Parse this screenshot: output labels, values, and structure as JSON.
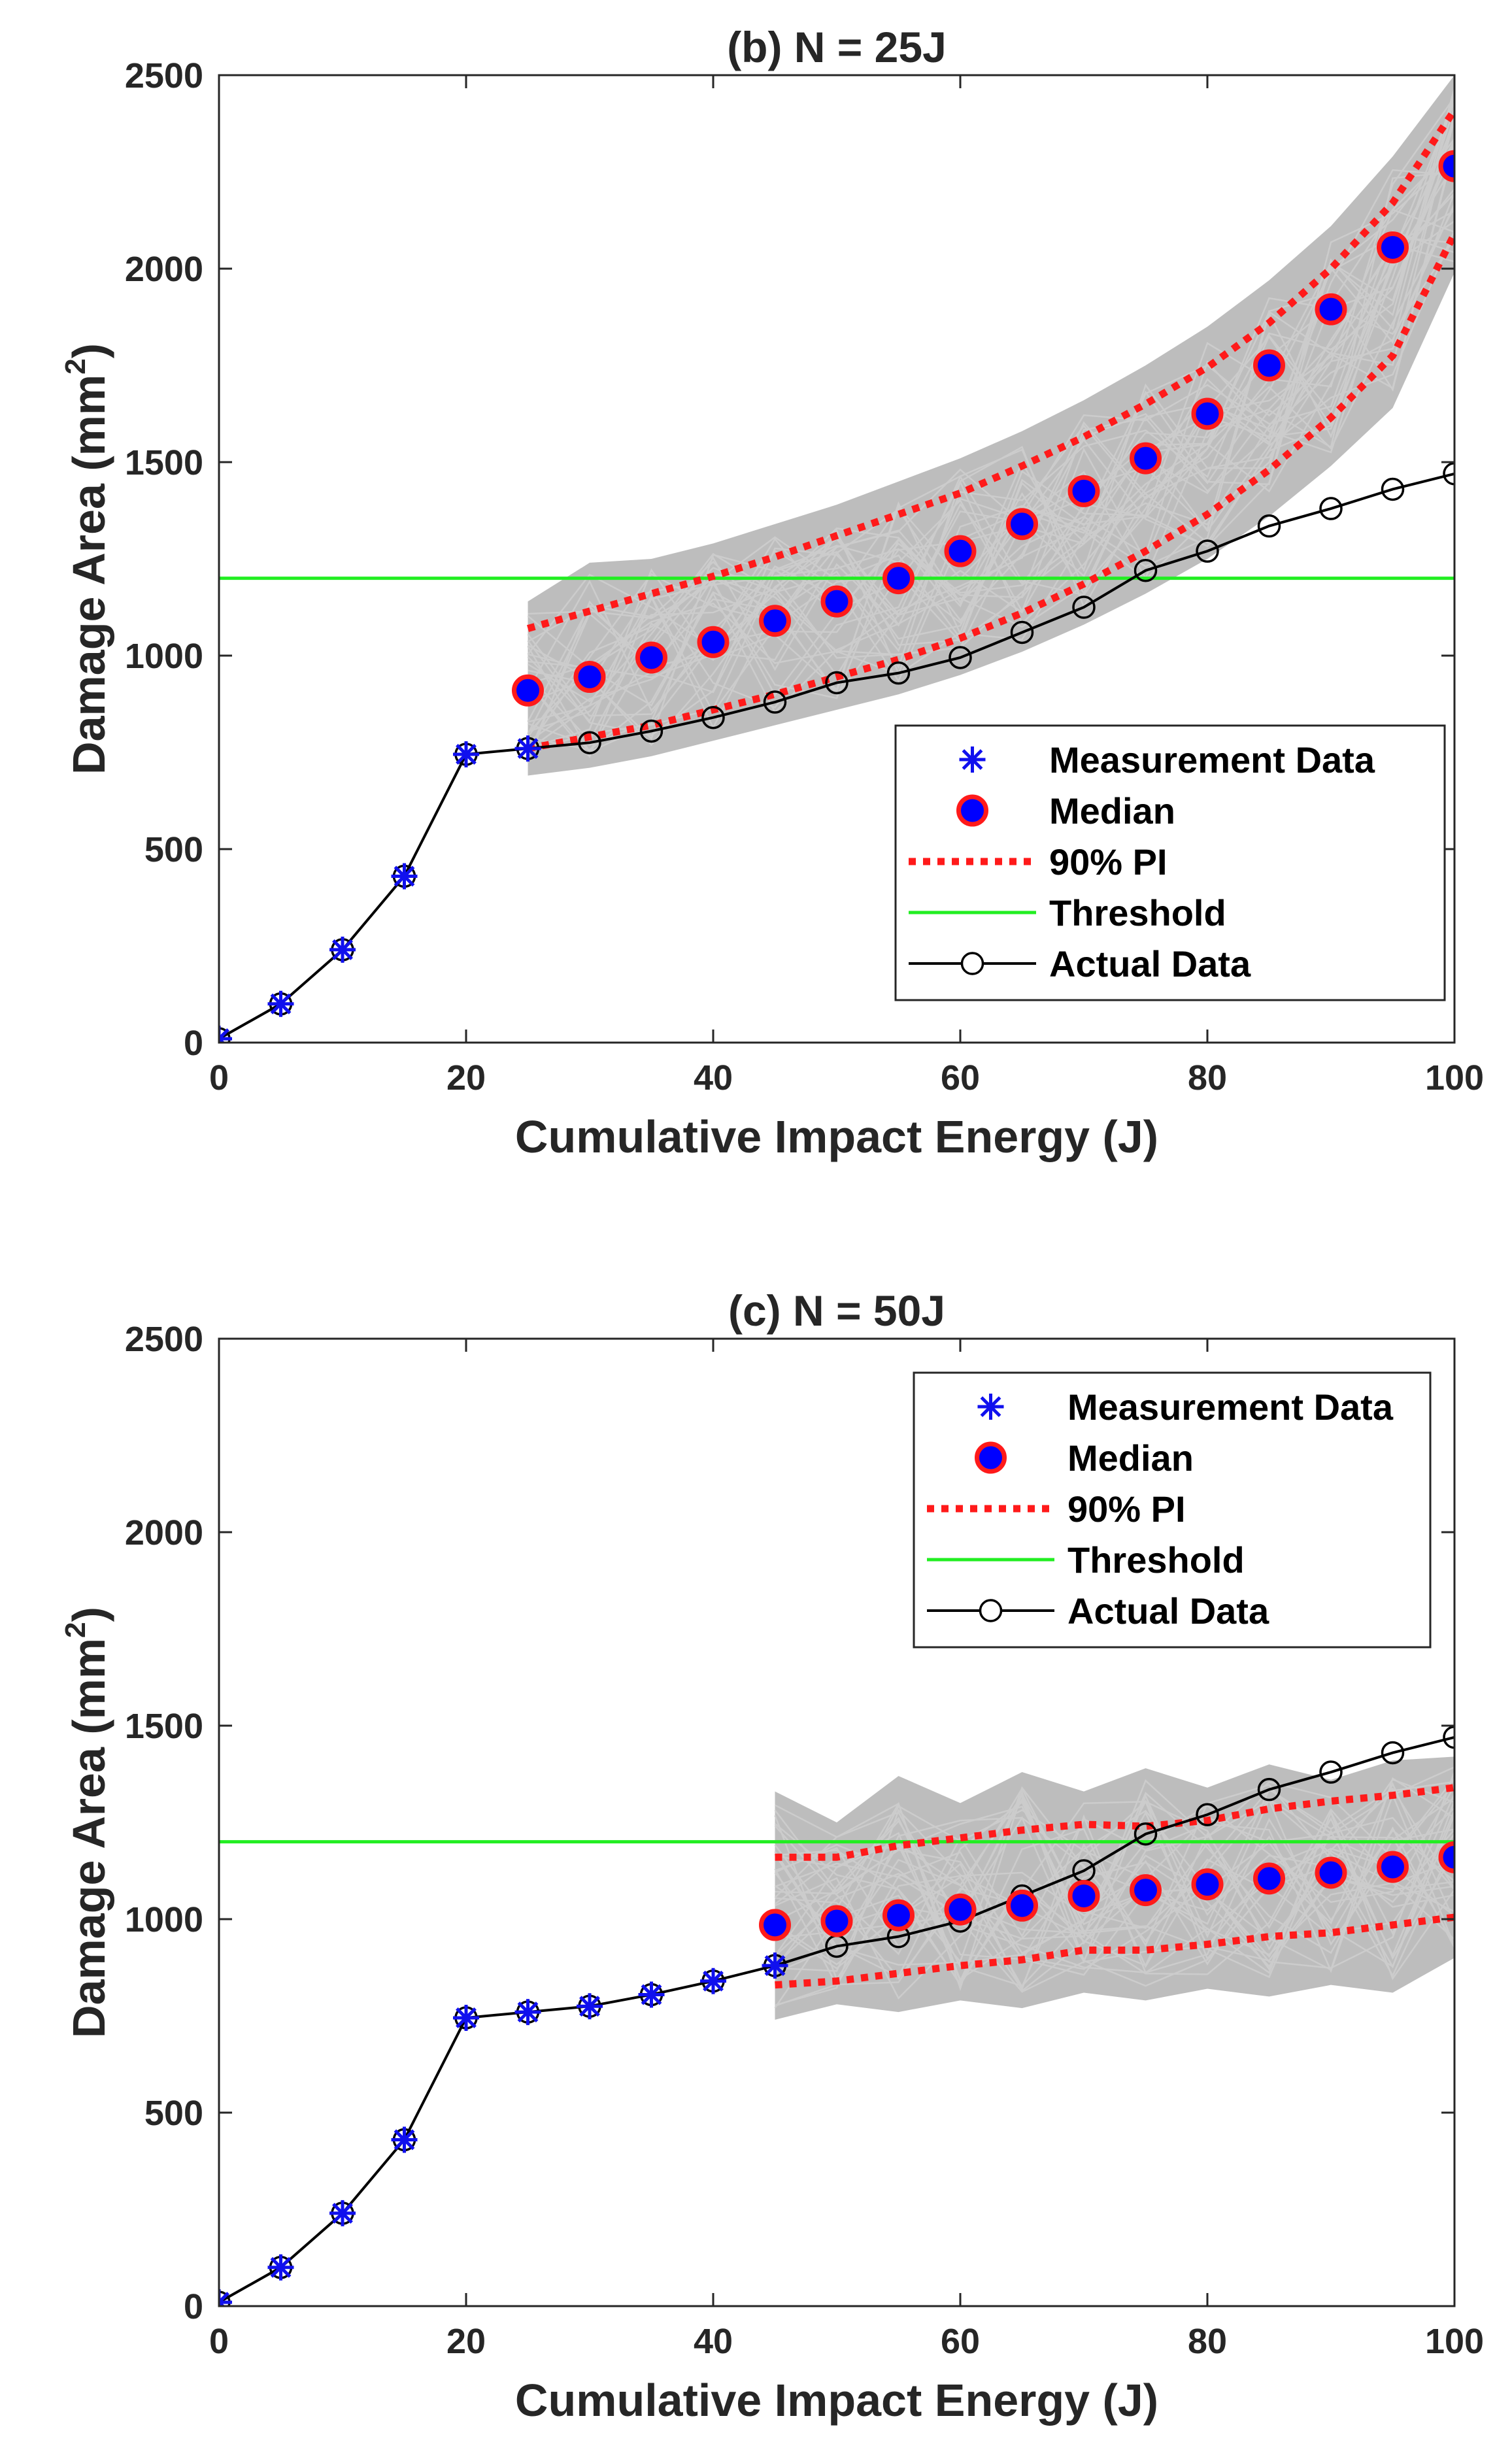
{
  "colors": {
    "measurement": "#1010ee",
    "median_fill": "#0000ff",
    "median_edge": "#ff1a1a",
    "pi": "#ff1a1a",
    "threshold": "#22ee22",
    "actual": "#000000",
    "band": "#bdbdbd",
    "band_lines": "#cccccc",
    "axis": "#262626"
  },
  "chart_data": [
    {
      "type": "line",
      "title": "(b) N = 25J",
      "xlabel": "Cumulative Impact Energy (J)",
      "ylabel_main": "Damage Area (mm",
      "ylabel_sup": "2",
      "ylabel_close": ")",
      "xlim": [
        0,
        100
      ],
      "ylim": [
        0,
        2500
      ],
      "xticks": [
        0,
        20,
        40,
        60,
        80,
        100
      ],
      "yticks": [
        0,
        500,
        1000,
        1500,
        2000,
        2500
      ],
      "legend_position": "bottom-right",
      "legend": [
        "Measurement Data",
        "Median",
        "90% PI",
        "Threshold",
        "Actual Data"
      ],
      "threshold": 1200,
      "measurement": {
        "x": [
          0,
          5,
          10,
          15,
          20,
          25
        ],
        "y": [
          10,
          100,
          240,
          430,
          745,
          760
        ]
      },
      "actual": {
        "x": [
          0,
          5,
          10,
          15,
          20,
          25,
          30,
          35,
          40,
          45,
          50,
          55,
          60,
          65,
          70,
          75,
          80,
          85,
          90,
          95,
          100
        ],
        "y": [
          10,
          100,
          240,
          430,
          745,
          760,
          775,
          805,
          840,
          880,
          930,
          955,
          995,
          1060,
          1125,
          1220,
          1270,
          1335,
          1380,
          1430,
          1470
        ]
      },
      "median": {
        "x": [
          25,
          30,
          35,
          40,
          45,
          50,
          55,
          60,
          65,
          70,
          75,
          80,
          85,
          90,
          95,
          100
        ],
        "y": [
          910,
          945,
          995,
          1035,
          1090,
          1140,
          1200,
          1270,
          1340,
          1425,
          1510,
          1625,
          1750,
          1895,
          2055,
          2265
        ]
      },
      "pi_upper": {
        "x": [
          25,
          30,
          35,
          40,
          45,
          50,
          55,
          60,
          65,
          70,
          75,
          80,
          85,
          90,
          95,
          100
        ],
        "y": [
          1070,
          1115,
          1160,
          1205,
          1255,
          1310,
          1365,
          1420,
          1490,
          1565,
          1650,
          1745,
          1860,
          2000,
          2170,
          2410
        ]
      },
      "pi_lower": {
        "x": [
          25,
          30,
          35,
          40,
          45,
          50,
          55,
          60,
          65,
          70,
          75,
          80,
          85,
          90,
          95,
          100
        ],
        "y": [
          760,
          790,
          820,
          860,
          900,
          945,
          990,
          1045,
          1110,
          1185,
          1270,
          1365,
          1480,
          1615,
          1775,
          2090
        ]
      },
      "band_upper": {
        "x": [
          25,
          30,
          35,
          40,
          45,
          50,
          55,
          60,
          65,
          70,
          75,
          80,
          85,
          90,
          95,
          100
        ],
        "y": [
          1140,
          1240,
          1250,
          1290,
          1340,
          1390,
          1450,
          1510,
          1580,
          1660,
          1750,
          1850,
          1970,
          2110,
          2290,
          2500
        ]
      },
      "band_lower": {
        "x": [
          25,
          30,
          35,
          40,
          45,
          50,
          55,
          60,
          65,
          70,
          75,
          80,
          85,
          90,
          95,
          100
        ],
        "y": [
          690,
          710,
          740,
          780,
          820,
          860,
          900,
          950,
          1010,
          1080,
          1160,
          1250,
          1360,
          1490,
          1640,
          1990
        ]
      }
    },
    {
      "type": "line",
      "title": "(c) N = 50J",
      "xlabel": "Cumulative Impact Energy (J)",
      "ylabel_main": "Damage Area (mm",
      "ylabel_sup": "2",
      "ylabel_close": ")",
      "xlim": [
        0,
        100
      ],
      "ylim": [
        0,
        2500
      ],
      "xticks": [
        0,
        20,
        40,
        60,
        80,
        100
      ],
      "yticks": [
        0,
        500,
        1000,
        1500,
        2000,
        2500
      ],
      "legend_position": "top-right",
      "legend": [
        "Measurement Data",
        "Median",
        "90% PI",
        "Threshold",
        "Actual Data"
      ],
      "threshold": 1200,
      "measurement": {
        "x": [
          0,
          5,
          10,
          15,
          20,
          25,
          30,
          35,
          40,
          45
        ],
        "y": [
          10,
          100,
          240,
          430,
          745,
          760,
          775,
          805,
          840,
          880
        ]
      },
      "actual": {
        "x": [
          0,
          5,
          10,
          15,
          20,
          25,
          30,
          35,
          40,
          45,
          50,
          55,
          60,
          65,
          70,
          75,
          80,
          85,
          90,
          95,
          100
        ],
        "y": [
          10,
          100,
          240,
          430,
          745,
          760,
          775,
          805,
          840,
          880,
          930,
          955,
          995,
          1060,
          1125,
          1220,
          1270,
          1335,
          1380,
          1430,
          1470
        ]
      },
      "median": {
        "x": [
          45,
          50,
          55,
          60,
          65,
          70,
          75,
          80,
          85,
          90,
          95,
          100
        ],
        "y": [
          985,
          995,
          1010,
          1025,
          1035,
          1060,
          1075,
          1090,
          1105,
          1120,
          1135,
          1160
        ]
      },
      "pi_upper": {
        "x": [
          45,
          50,
          55,
          60,
          65,
          70,
          75,
          80,
          85,
          90,
          95,
          100
        ],
        "y": [
          1160,
          1160,
          1190,
          1210,
          1230,
          1245,
          1240,
          1255,
          1285,
          1305,
          1320,
          1340
        ]
      },
      "pi_lower": {
        "x": [
          45,
          50,
          55,
          60,
          65,
          70,
          75,
          80,
          85,
          90,
          95,
          100
        ],
        "y": [
          830,
          840,
          860,
          880,
          895,
          920,
          920,
          935,
          955,
          965,
          985,
          1005
        ]
      },
      "band_upper": {
        "x": [
          45,
          50,
          55,
          60,
          65,
          70,
          75,
          80,
          85,
          90,
          95,
          100
        ],
        "y": [
          1330,
          1250,
          1370,
          1300,
          1380,
          1330,
          1390,
          1340,
          1400,
          1360,
          1410,
          1420
        ]
      },
      "band_lower": {
        "x": [
          45,
          50,
          55,
          60,
          65,
          70,
          75,
          80,
          85,
          90,
          95,
          100
        ],
        "y": [
          740,
          780,
          760,
          790,
          770,
          810,
          790,
          820,
          800,
          830,
          810,
          900
        ]
      }
    }
  ]
}
